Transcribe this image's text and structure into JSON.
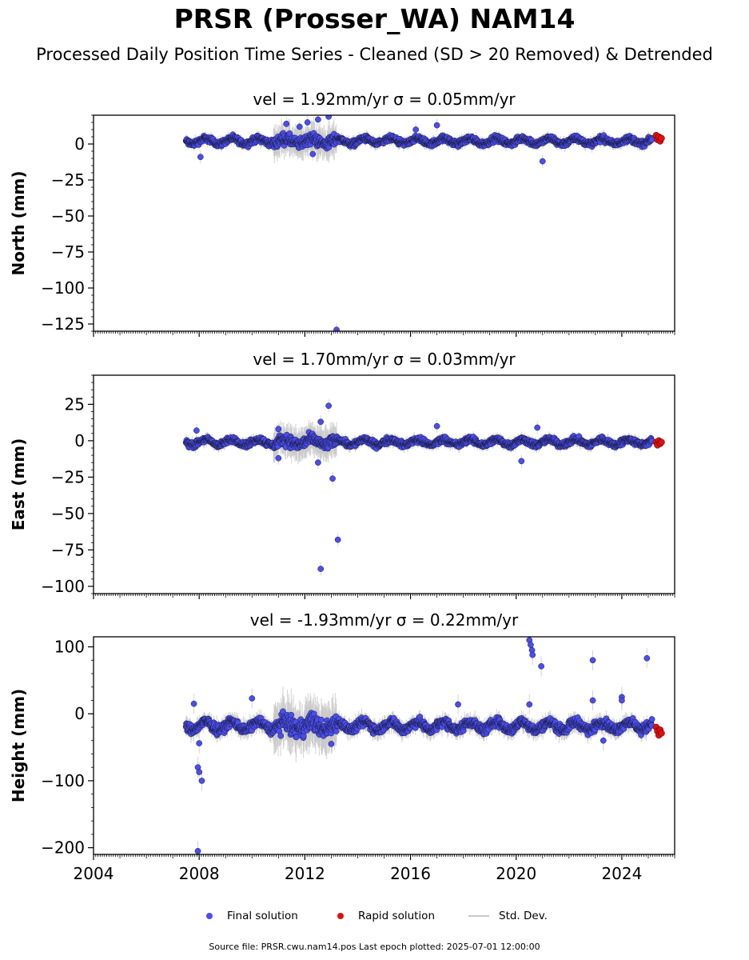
{
  "title": "PRSR (Prosser_WA) NAM14",
  "subtitle": "Processed Daily Position Time Series - Cleaned (SD > 20 Removed) & Detrended",
  "legend": {
    "final_label": "Final solution",
    "rapid_label": "Rapid solution",
    "sd_label": "Std. Dev."
  },
  "footer": "Source file: PRSR.cwu.nam14.pos  Last epoch plotted: 2025-07-01 12:00:00",
  "colors": {
    "final": "#4a4ef0",
    "rapid": "#e01010",
    "stddev": "#c8c8c8"
  },
  "chart_data": [
    {
      "type": "scatter",
      "title": "vel = 1.92mm/yr   σ = 0.05mm/yr",
      "ylabel": "North (mm)",
      "xlim": [
        2004,
        2026
      ],
      "ylim": [
        -130,
        20
      ],
      "yticks": [
        0,
        -25,
        -50,
        -75,
        -100,
        -125
      ],
      "ytick_labels": [
        "0",
        "−25",
        "−50",
        "−75",
        "−100",
        "−125"
      ],
      "data_start": 2007.5,
      "data_end": 2025.15,
      "baseline": 2,
      "spread": 3,
      "noisy_period": [
        2010.8,
        2013.2
      ],
      "outliers": [
        {
          "x": 2008.05,
          "y": -9
        },
        {
          "x": 2011.3,
          "y": 14
        },
        {
          "x": 2011.8,
          "y": 12
        },
        {
          "x": 2012.1,
          "y": 15
        },
        {
          "x": 2012.5,
          "y": 17
        },
        {
          "x": 2012.9,
          "y": 19
        },
        {
          "x": 2012.3,
          "y": -7
        },
        {
          "x": 2013.2,
          "y": -129
        },
        {
          "x": 2017.0,
          "y": 13
        },
        {
          "x": 2016.2,
          "y": 10
        },
        {
          "x": 2021.0,
          "y": -12
        }
      ],
      "rapid": [
        {
          "x": 2025.3,
          "y": 6
        },
        {
          "x": 2025.35,
          "y": 3
        },
        {
          "x": 2025.4,
          "y": 5
        },
        {
          "x": 2025.45,
          "y": 2
        },
        {
          "x": 2025.5,
          "y": 4
        }
      ]
    },
    {
      "type": "scatter",
      "title": "vel = 1.70mm/yr   σ = 0.03mm/yr",
      "ylabel": "East (mm)",
      "xlim": [
        2004,
        2026
      ],
      "ylim": [
        -105,
        45
      ],
      "yticks": [
        25,
        0,
        -25,
        -50,
        -75,
        -100
      ],
      "ytick_labels": [
        "25",
        "0",
        "−25",
        "−50",
        "−75",
        "−100"
      ],
      "data_start": 2007.5,
      "data_end": 2025.15,
      "baseline": -1,
      "spread": 3,
      "noisy_period": [
        2010.8,
        2013.2
      ],
      "outliers": [
        {
          "x": 2007.9,
          "y": 7
        },
        {
          "x": 2011.0,
          "y": 8
        },
        {
          "x": 2012.6,
          "y": 13
        },
        {
          "x": 2012.9,
          "y": 24
        },
        {
          "x": 2013.05,
          "y": -26
        },
        {
          "x": 2012.6,
          "y": -88
        },
        {
          "x": 2013.25,
          "y": -68
        },
        {
          "x": 2011.0,
          "y": -12
        },
        {
          "x": 2012.5,
          "y": -15
        },
        {
          "x": 2017.0,
          "y": 10
        },
        {
          "x": 2020.2,
          "y": -14
        },
        {
          "x": 2020.8,
          "y": 9
        }
      ],
      "rapid": [
        {
          "x": 2025.3,
          "y": -1
        },
        {
          "x": 2025.35,
          "y": -3
        },
        {
          "x": 2025.4,
          "y": 0
        },
        {
          "x": 2025.45,
          "y": -2
        },
        {
          "x": 2025.5,
          "y": -1
        }
      ]
    },
    {
      "type": "scatter",
      "title": "vel = -1.93mm/yr   σ = 0.22mm/yr",
      "ylabel": "Height (mm)",
      "xlabel_ticks": [
        "2004",
        "2008",
        "2012",
        "2016",
        "2020",
        "2024"
      ],
      "xticks": [
        2004,
        2008,
        2012,
        2016,
        2020,
        2024
      ],
      "xlim": [
        2004,
        2026
      ],
      "ylim": [
        -210,
        115
      ],
      "yticks": [
        100,
        0,
        -100,
        -200
      ],
      "ytick_labels": [
        "100",
        "0",
        "−100",
        "−200"
      ],
      "data_start": 2007.5,
      "data_end": 2025.15,
      "baseline": -18,
      "spread": 10,
      "noisy_period": [
        2010.8,
        2013.2
      ],
      "outliers": [
        {
          "x": 2007.8,
          "y": 15
        },
        {
          "x": 2007.95,
          "y": -80
        },
        {
          "x": 2008.0,
          "y": -87
        },
        {
          "x": 2008.1,
          "y": -100
        },
        {
          "x": 2007.95,
          "y": -205
        },
        {
          "x": 2010.0,
          "y": 23
        },
        {
          "x": 2020.5,
          "y": 110
        },
        {
          "x": 2020.55,
          "y": 103
        },
        {
          "x": 2020.6,
          "y": 95
        },
        {
          "x": 2020.62,
          "y": 88
        },
        {
          "x": 2020.95,
          "y": 71
        },
        {
          "x": 2022.9,
          "y": 80
        },
        {
          "x": 2024.95,
          "y": 83
        },
        {
          "x": 2024.0,
          "y": 25
        },
        {
          "x": 2024.0,
          "y": 20
        },
        {
          "x": 2020.5,
          "y": 14
        },
        {
          "x": 2022.9,
          "y": 20
        },
        {
          "x": 2017.8,
          "y": 14
        },
        {
          "x": 2023.3,
          "y": -40
        },
        {
          "x": 2013.0,
          "y": -45
        },
        {
          "x": 2008.0,
          "y": -44
        }
      ],
      "rapid": [
        {
          "x": 2025.3,
          "y": -20
        },
        {
          "x": 2025.35,
          "y": -26
        },
        {
          "x": 2025.4,
          "y": -32
        },
        {
          "x": 2025.45,
          "y": -24
        },
        {
          "x": 2025.5,
          "y": -29
        }
      ]
    }
  ]
}
